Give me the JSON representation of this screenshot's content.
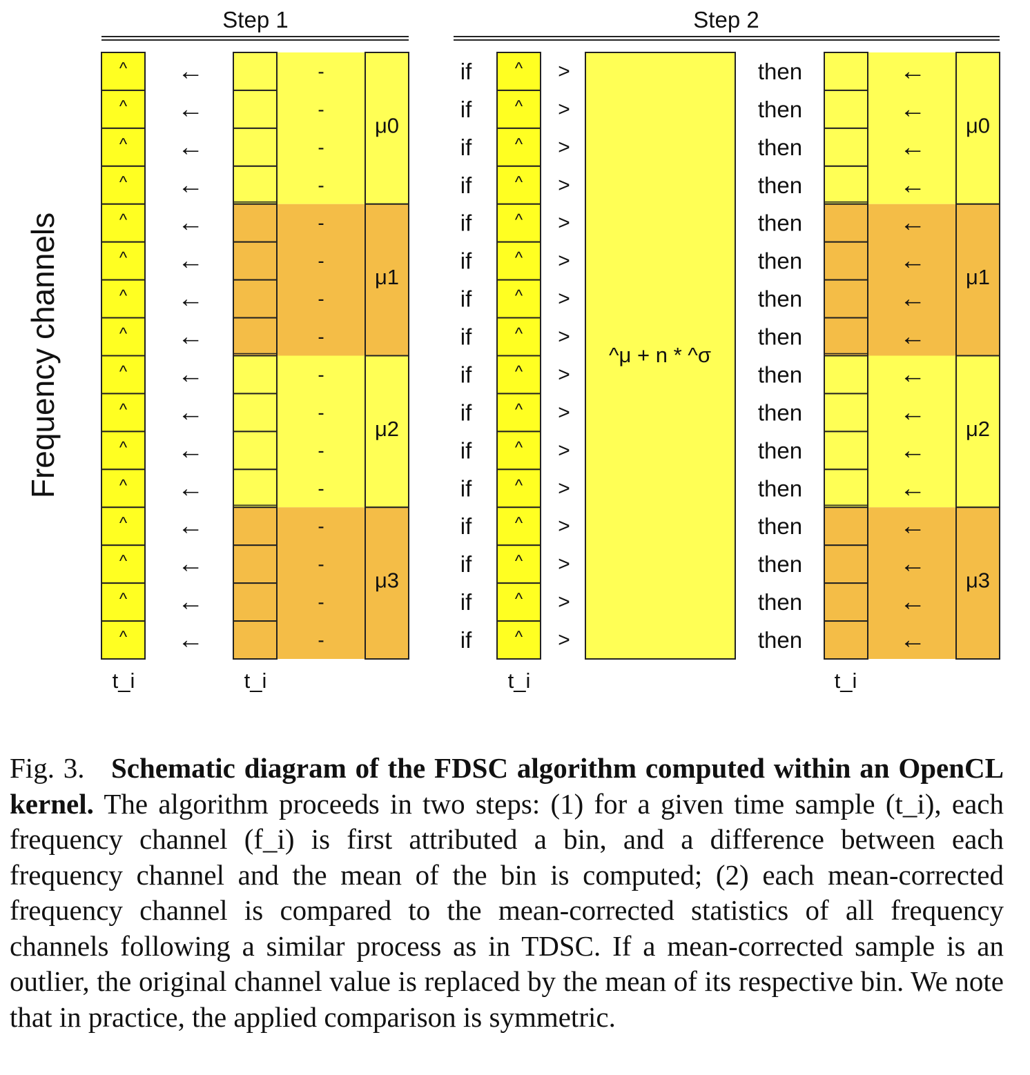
{
  "figure": {
    "y_axis_label": "Frequency channels",
    "step1": {
      "title": "Step 1",
      "minus_symbol": "-"
    },
    "step2": {
      "title": "Step 2",
      "if_word": "if",
      "then_word": "then",
      "greater_symbol": ">",
      "threshold_expression": "^μ + n * ^σ"
    },
    "hat_symbol": "^",
    "arrow_symbol": "←",
    "rows_per_bin": 4,
    "bins": [
      {
        "label": "μ0",
        "color": "#FFFF55"
      },
      {
        "label": "μ1",
        "color": "#F4BD47"
      },
      {
        "label": "μ2",
        "color": "#FFFF55"
      },
      {
        "label": "μ3",
        "color": "#F4BD47"
      }
    ],
    "column_colors": {
      "hat_column": "#FFFF22",
      "threshold_box": "#FFFF55",
      "border": "#222222"
    },
    "time_labels": [
      "t_i",
      "t_i",
      "t_i",
      "t_i"
    ]
  },
  "caption": {
    "prefix": "Fig. 3.",
    "bold_title": "Schematic diagram of the FDSC algorithm computed within an OpenCL kernel.",
    "body": "The algorithm proceeds in two steps: (1) for a given time sample (t_i), each frequency channel (f_i) is first attributed a bin, and a difference between each frequency channel and the mean of the bin is computed; (2) each mean-corrected frequency channel is compared to the mean-corrected statistics of all frequency channels following a similar process as in TDSC. If a mean-corrected sample is an outlier, the original channel value is replaced by the mean of its respective bin. We note that in practice, the applied comparison is symmetric."
  }
}
